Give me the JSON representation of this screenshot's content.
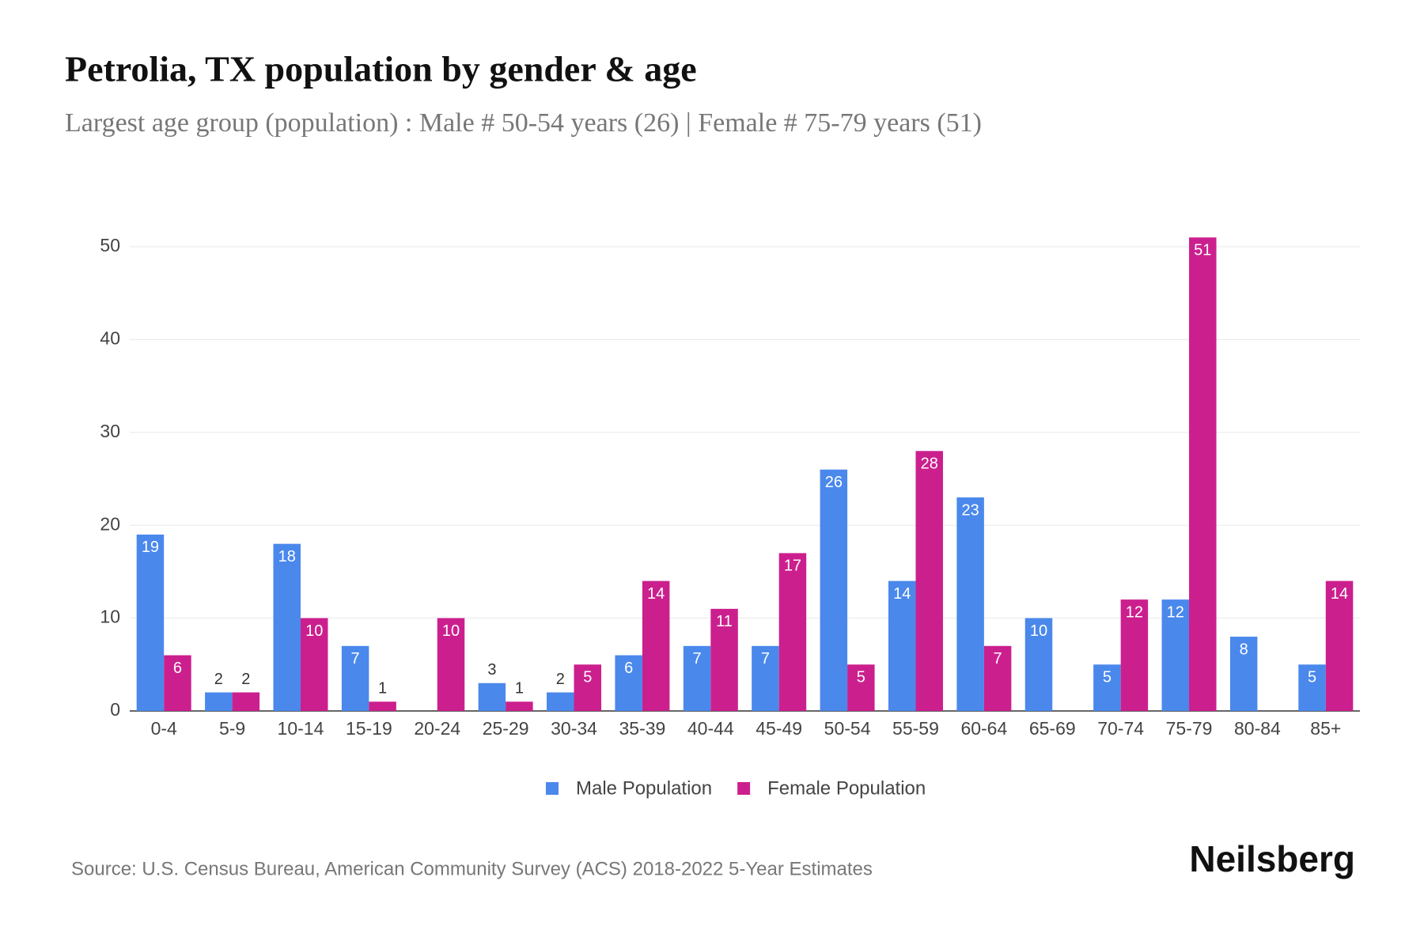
{
  "chart_data": {
    "type": "bar",
    "title": "Petrolia, TX population by gender & age",
    "subtitle": "Largest age group (population) : Male # 50-54 years (26) | Female # 75-79 years (51)",
    "categories": [
      "0-4",
      "5-9",
      "10-14",
      "15-19",
      "20-24",
      "25-29",
      "30-34",
      "35-39",
      "40-44",
      "45-49",
      "50-54",
      "55-59",
      "60-64",
      "65-69",
      "70-74",
      "75-79",
      "80-84",
      "85+"
    ],
    "series": [
      {
        "name": "Male Population",
        "color": "#4a88ec",
        "values": [
          19,
          2,
          18,
          7,
          null,
          3,
          2,
          6,
          7,
          7,
          26,
          14,
          23,
          10,
          5,
          12,
          8,
          5
        ]
      },
      {
        "name": "Female Population",
        "color": "#cc1f8e",
        "values": [
          6,
          2,
          10,
          1,
          10,
          1,
          5,
          14,
          11,
          17,
          5,
          28,
          7,
          null,
          12,
          51,
          null,
          14
        ]
      }
    ],
    "ylim": [
      0,
      50
    ],
    "yticks": [
      0,
      10,
      20,
      30,
      40,
      50
    ],
    "grid": true
  },
  "footer": {
    "source": "Source: U.S. Census Bureau, American Community Survey (ACS) 2018-2022 5-Year Estimates",
    "brand": "Neilsberg"
  }
}
